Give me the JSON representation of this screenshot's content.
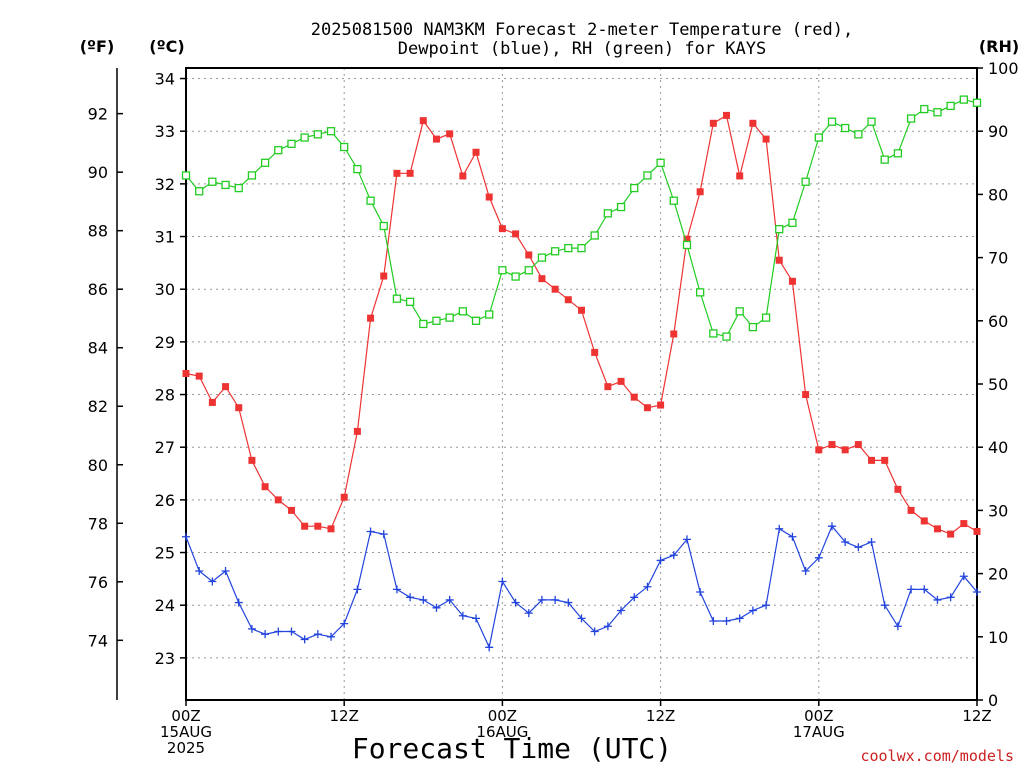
{
  "chart_data": {
    "type": "line",
    "title_line1": "2025081500 NAM3KM Forecast 2-meter Temperature (red),",
    "title_line2": "Dewpoint (blue), RH (green) for KAYS",
    "xlabel": "Forecast Time (UTC)",
    "credit": "coolwx.com/models",
    "unit_left_f": "(ºF)",
    "unit_left_c": "(ºC)",
    "unit_right": "(RH)",
    "x_range_hours": [
      0,
      60
    ],
    "x_ticks": [
      {
        "hour": 0,
        "lines": [
          "00Z",
          "15AUG",
          "2025"
        ]
      },
      {
        "hour": 12,
        "lines": [
          "12Z"
        ]
      },
      {
        "hour": 24,
        "lines": [
          "00Z",
          "16AUG"
        ]
      },
      {
        "hour": 36,
        "lines": [
          "12Z"
        ]
      },
      {
        "hour": 48,
        "lines": [
          "00Z",
          "17AUG"
        ]
      },
      {
        "hour": 60,
        "lines": [
          "12Z"
        ]
      }
    ],
    "ylim_c": [
      22.2,
      34.2
    ],
    "yticks_c": [
      "23",
      "24",
      "25",
      "26",
      "27",
      "28",
      "29",
      "30",
      "31",
      "32",
      "33",
      "34"
    ],
    "yticks_f": [
      "74",
      "76",
      "78",
      "80",
      "82",
      "84",
      "86",
      "88",
      "90",
      "92"
    ],
    "ylim_rh": [
      0,
      100
    ],
    "yticks_rh": [
      "0",
      "10",
      "20",
      "30",
      "40",
      "50",
      "60",
      "70",
      "80",
      "90",
      "100"
    ],
    "colors": {
      "temperature": "#ee3333",
      "dewpoint": "#2244dd",
      "rh": "#22cc22"
    },
    "series": [
      {
        "key": "temperature",
        "units": "°C",
        "values": [
          28.4,
          28.35,
          27.85,
          28.15,
          27.75,
          26.75,
          26.25,
          26.0,
          25.8,
          25.5,
          25.5,
          25.45,
          26.05,
          27.3,
          29.45,
          30.25,
          32.2,
          32.2,
          33.2,
          32.85,
          32.95,
          32.15,
          32.6,
          31.75,
          31.15,
          31.05,
          30.65,
          30.2,
          30.0,
          29.8,
          29.6,
          28.8,
          28.15,
          28.25,
          27.95,
          27.75,
          27.8,
          29.15,
          30.95,
          31.85,
          33.15,
          33.3,
          32.15,
          33.15,
          32.85,
          30.55,
          30.15,
          28.0,
          26.95,
          27.05,
          26.95,
          27.05,
          26.75,
          26.75,
          26.2,
          25.8,
          25.6,
          25.45,
          25.35,
          25.55,
          25.4
        ]
      },
      {
        "key": "dewpoint",
        "units": "°C",
        "values": [
          25.3,
          24.65,
          24.45,
          24.65,
          24.05,
          23.55,
          23.45,
          23.5,
          23.5,
          23.35,
          23.45,
          23.4,
          23.65,
          24.3,
          25.4,
          25.35,
          24.3,
          24.15,
          24.1,
          23.95,
          24.1,
          23.8,
          23.75,
          23.2,
          24.45,
          24.05,
          23.85,
          24.1,
          24.1,
          24.05,
          23.75,
          23.5,
          23.6,
          23.9,
          24.15,
          24.35,
          24.85,
          24.95,
          25.25,
          24.25,
          23.7,
          23.7,
          23.75,
          23.9,
          24.0,
          25.45,
          25.3,
          24.65,
          24.9,
          25.5,
          25.2,
          25.1,
          25.2,
          24.0,
          23.6,
          24.3,
          24.3,
          24.1,
          24.15,
          24.55,
          24.25
        ]
      },
      {
        "key": "rh",
        "units": "%",
        "values": [
          83,
          80.5,
          82,
          81.5,
          81,
          83,
          85,
          87,
          88,
          89,
          89.5,
          90,
          87.5,
          84,
          79,
          75,
          63.5,
          63,
          59.5,
          60,
          60.5,
          61.5,
          60,
          61,
          68,
          67,
          68,
          70,
          71,
          71.5,
          71.5,
          73.5,
          77,
          78,
          81,
          83,
          85,
          79,
          72,
          64.5,
          58,
          57.5,
          61.5,
          59,
          60.5,
          74.5,
          75.5,
          82,
          89,
          91.5,
          90.5,
          89.5,
          91.5,
          85.5,
          86.5,
          92,
          93.5,
          93,
          94,
          95,
          94.5
        ]
      }
    ]
  }
}
